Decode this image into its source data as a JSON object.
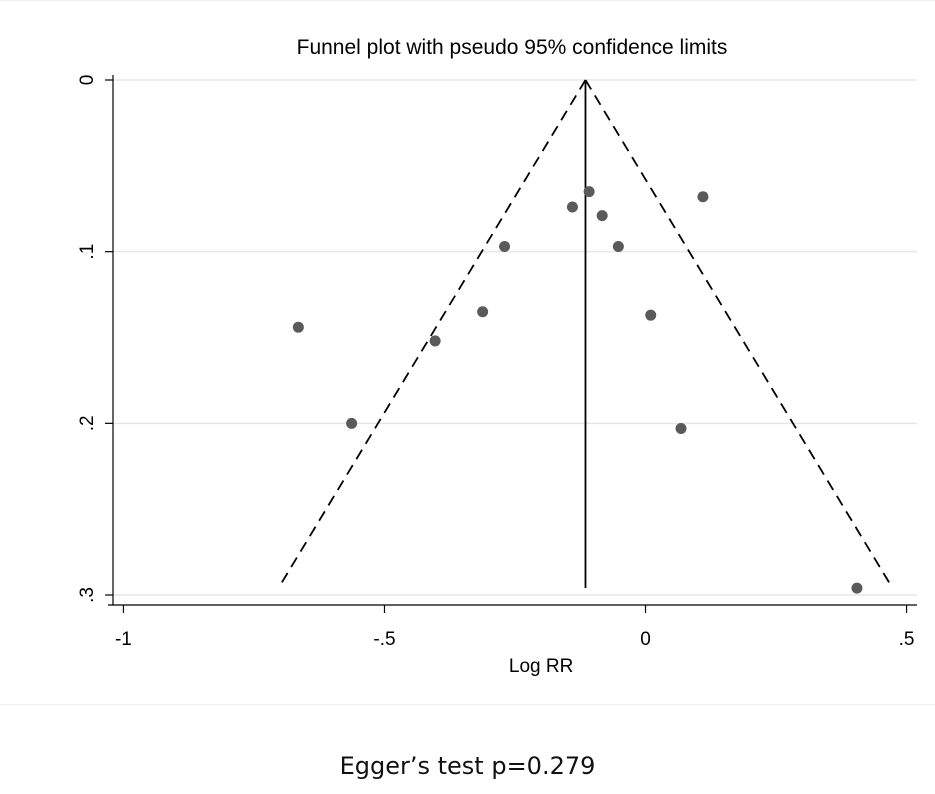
{
  "chart_data": {
    "type": "scatter",
    "title": "Funnel plot with pseudo 95% confidence limits",
    "xlabel": "Log RR",
    "ylabel": "",
    "xlim": [
      -1.02,
      0.52
    ],
    "ylim": [
      0,
      0.3
    ],
    "y_reversed": true,
    "x_ticks": [
      -1,
      -0.5,
      0,
      0.5
    ],
    "x_tick_labels": [
      "-1",
      "-.5",
      "0",
      ".5"
    ],
    "y_ticks": [
      0,
      0.1,
      0.2,
      0.3
    ],
    "y_tick_labels": [
      "0",
      ".1",
      ".2",
      ".3"
    ],
    "grid": true,
    "pooled_estimate": -0.115,
    "ci_multiplier": 1.96,
    "marker_color": "#5a5a5a",
    "points": [
      {
        "x": -0.665,
        "y": 0.144
      },
      {
        "x": -0.563,
        "y": 0.2
      },
      {
        "x": -0.403,
        "y": 0.152
      },
      {
        "x": -0.312,
        "y": 0.135
      },
      {
        "x": -0.27,
        "y": 0.097
      },
      {
        "x": -0.14,
        "y": 0.074
      },
      {
        "x": -0.108,
        "y": 0.065
      },
      {
        "x": -0.083,
        "y": 0.079
      },
      {
        "x": -0.052,
        "y": 0.097
      },
      {
        "x": 0.01,
        "y": 0.137
      },
      {
        "x": 0.068,
        "y": 0.203
      },
      {
        "x": 0.11,
        "y": 0.068
      },
      {
        "x": 0.405,
        "y": 0.296
      }
    ]
  },
  "caption": "Egger’s test p=0.279"
}
